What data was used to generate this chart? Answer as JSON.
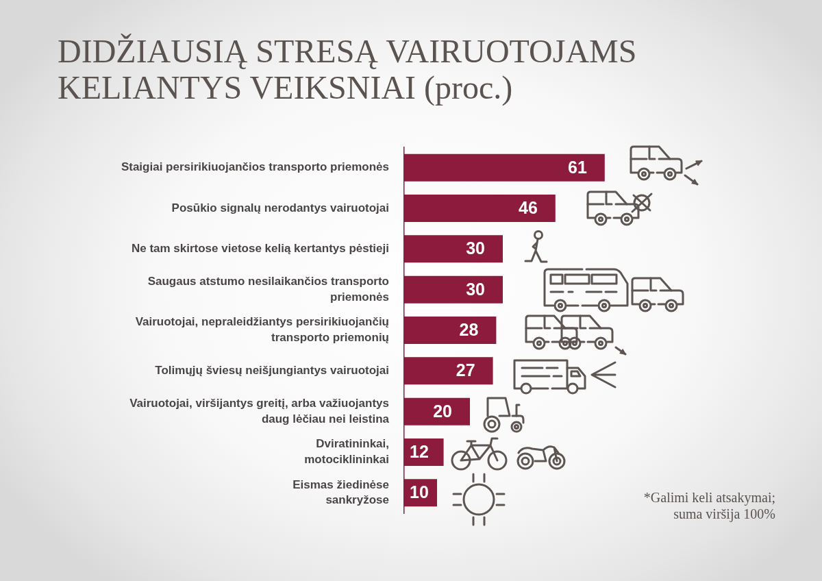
{
  "chart_data": {
    "type": "bar",
    "orientation": "horizontal",
    "title": "DIDŽIAUSIĄ STRESĄ VAIRUOTOJAMS KELIANTYS VEIKSNIAI (proc.)",
    "categories": [
      "Staigiai persirikiuojančios transporto priemonės",
      "Posūkio signalų nerodantys vairuotojai",
      "Ne tam skirtose vietose kelią kertantys pėstieji",
      "Saugaus atstumo nesilaikančios transporto\npriemonės",
      "Vairuotojai, nepraleidžiantys persirikiuojančių\ntransporto priemonių",
      "Tolimųjų šviesų neišjungiantys vairuotojai",
      "Vairuotojai, viršijantys greitį, arba važiuojantys\ndaug lėčiau nei leistina",
      "Dviratininkai,\nmotociklininkai",
      "Eismas žiedinėse\nsankryžose"
    ],
    "values": [
      61,
      46,
      30,
      30,
      28,
      27,
      20,
      12,
      10
    ],
    "color": "#8c1b3e",
    "data_labels": true,
    "tick_labels": "y",
    "annotations": [
      "*Galimi keli atsakymai; suma viršija 100%"
    ]
  }
}
